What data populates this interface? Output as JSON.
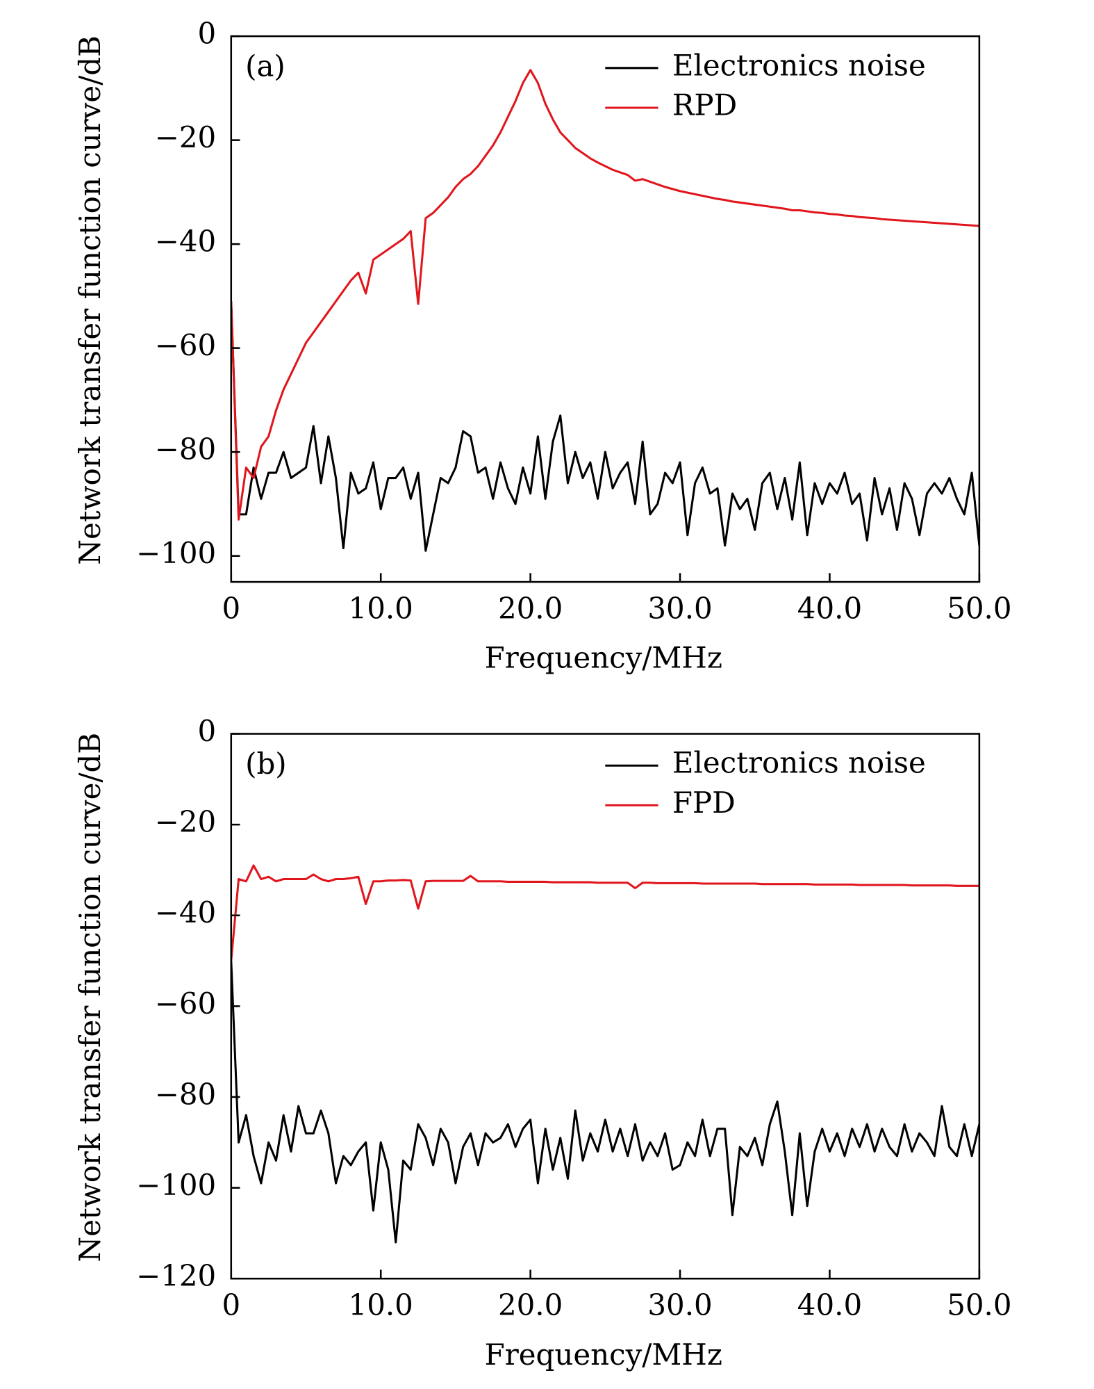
{
  "chart_data": [
    {
      "type": "line",
      "panel_label": "(a)",
      "xlabel": "Frequency/MHz",
      "ylabel": "Network transfer function curve/dB",
      "legend": "upper right",
      "xlim": [
        0,
        50
      ],
      "ylim": [
        -105,
        0
      ],
      "xticks": [
        0,
        {
          "value": 10,
          "label": "10.0"
        },
        {
          "value": 20,
          "label": "20.0"
        },
        {
          "value": 30,
          "label": "30.0"
        },
        {
          "value": 40,
          "label": "40.0"
        },
        {
          "value": 50,
          "label": "50.0"
        }
      ],
      "yticks": [
        0,
        {
          "value": -20,
          "label": "−20"
        },
        {
          "value": -40,
          "label": "−40"
        },
        {
          "value": -60,
          "label": "−60"
        },
        {
          "value": -80,
          "label": "−80"
        },
        {
          "value": -100,
          "label": "−100"
        }
      ],
      "x": [
        0,
        0.5,
        1,
        1.5,
        2,
        2.5,
        3,
        3.5,
        4,
        4.5,
        5,
        5.5,
        6,
        6.5,
        7,
        7.5,
        8,
        8.5,
        9,
        9.5,
        10,
        10.5,
        11,
        11.5,
        12,
        12.5,
        13,
        13.5,
        14,
        14.5,
        15,
        15.5,
        16,
        16.5,
        17,
        17.5,
        18,
        18.5,
        19,
        19.5,
        20,
        20.5,
        21,
        21.5,
        22,
        22.5,
        23,
        23.5,
        24,
        24.5,
        25,
        25.5,
        26,
        26.5,
        27,
        27.5,
        28,
        28.5,
        29,
        29.5,
        30,
        30.5,
        31,
        31.5,
        32,
        32.5,
        33,
        33.5,
        34,
        34.5,
        35,
        35.5,
        36,
        36.5,
        37,
        37.5,
        38,
        38.5,
        39,
        39.5,
        40,
        40.5,
        41,
        41.5,
        42,
        42.5,
        43,
        43.5,
        44,
        44.5,
        45,
        45.5,
        46,
        46.5,
        47,
        47.5,
        48,
        48.5,
        49,
        49.5,
        50
      ],
      "series": [
        {
          "name": "Electronics noise",
          "color": "#000000",
          "values": [
            -51,
            -92,
            -92,
            -83,
            -89,
            -84,
            -84,
            -80,
            -85,
            -84,
            -83,
            -75,
            -86,
            -77,
            -85,
            -98.5,
            -84,
            -88,
            -87,
            -82,
            -91,
            -85,
            -85,
            -83,
            -89,
            -84,
            -99,
            -92,
            -85,
            -86,
            -83,
            -76,
            -77,
            -84,
            -83,
            -89,
            -82,
            -87,
            -90,
            -83,
            -88,
            -77,
            -89,
            -78,
            -73,
            -86,
            -80,
            -85,
            -82,
            -89,
            -80,
            -87,
            -84,
            -82,
            -90,
            -78,
            -92,
            -90,
            -84,
            -86,
            -82,
            -96,
            -86,
            -83,
            -88,
            -87,
            -98,
            -88,
            -91,
            -89,
            -95,
            -86,
            -84,
            -91,
            -85,
            -93,
            -82,
            -96,
            -86,
            -90,
            -86,
            -88,
            -84,
            -90,
            -88,
            -97,
            -85,
            -92,
            -87,
            -95,
            -86,
            -89,
            -96,
            -88,
            -86,
            -88,
            -85,
            -89,
            -92,
            -84,
            -98
          ]
        },
        {
          "name": "RPD",
          "color": "#e0161c",
          "values": [
            -51,
            -93,
            -83,
            -85,
            -79,
            -77,
            -72,
            -68,
            -65,
            -62,
            -59,
            -57,
            -55,
            -53,
            -51,
            -49,
            -47,
            -45.5,
            -49.5,
            -43,
            -42,
            -41,
            -40,
            -39,
            -37.5,
            -51.5,
            -35,
            -34,
            -32.5,
            -31,
            -29,
            -27.5,
            -26.5,
            -25,
            -23,
            -21,
            -18.5,
            -15.5,
            -12.5,
            -9,
            -6.5,
            -9,
            -13,
            -16,
            -18.5,
            -20,
            -21.5,
            -22.5,
            -23.5,
            -24.3,
            -25,
            -25.7,
            -26.2,
            -26.7,
            -27.8,
            -27.5,
            -28,
            -28.5,
            -29,
            -29.4,
            -29.8,
            -30.1,
            -30.4,
            -30.7,
            -31,
            -31.3,
            -31.5,
            -31.8,
            -32,
            -32.2,
            -32.4,
            -32.6,
            -32.8,
            -33,
            -33.2,
            -33.5,
            -33.5,
            -33.7,
            -33.9,
            -34,
            -34.2,
            -34.3,
            -34.5,
            -34.6,
            -34.8,
            -34.9,
            -35,
            -35.2,
            -35.3,
            -35.4,
            -35.5,
            -35.6,
            -35.7,
            -35.8,
            -35.9,
            -36,
            -36.1,
            -36.2,
            -36.3,
            -36.4,
            -36.5
          ]
        }
      ]
    },
    {
      "type": "line",
      "panel_label": "(b)",
      "xlabel": "Frequency/MHz",
      "ylabel": "Network transfer function curve/dB",
      "legend": "upper right",
      "xlim": [
        0,
        50
      ],
      "ylim": [
        -120,
        0
      ],
      "xticks": [
        0,
        {
          "value": 10,
          "label": "10.0"
        },
        {
          "value": 20,
          "label": "20.0"
        },
        {
          "value": 30,
          "label": "30.0"
        },
        {
          "value": 40,
          "label": "40.0"
        },
        {
          "value": 50,
          "label": "50.0"
        }
      ],
      "yticks": [
        0,
        {
          "value": -20,
          "label": "−20"
        },
        {
          "value": -40,
          "label": "−40"
        },
        {
          "value": -60,
          "label": "−60"
        },
        {
          "value": -80,
          "label": "−80"
        },
        {
          "value": -100,
          "label": "−100"
        },
        {
          "value": -120,
          "label": "−120"
        }
      ],
      "x": [
        0,
        0.5,
        1,
        1.5,
        2,
        2.5,
        3,
        3.5,
        4,
        4.5,
        5,
        5.5,
        6,
        6.5,
        7,
        7.5,
        8,
        8.5,
        9,
        9.5,
        10,
        10.5,
        11,
        11.5,
        12,
        12.5,
        13,
        13.5,
        14,
        14.5,
        15,
        15.5,
        16,
        16.5,
        17,
        17.5,
        18,
        18.5,
        19,
        19.5,
        20,
        20.5,
        21,
        21.5,
        22,
        22.5,
        23,
        23.5,
        24,
        24.5,
        25,
        25.5,
        26,
        26.5,
        27,
        27.5,
        28,
        28.5,
        29,
        29.5,
        30,
        30.5,
        31,
        31.5,
        32,
        32.5,
        33,
        33.5,
        34,
        34.5,
        35,
        35.5,
        36,
        36.5,
        37,
        37.5,
        38,
        38.5,
        39,
        39.5,
        40,
        40.5,
        41,
        41.5,
        42,
        42.5,
        43,
        43.5,
        44,
        44.5,
        45,
        45.5,
        46,
        46.5,
        47,
        47.5,
        48,
        48.5,
        49,
        49.5,
        50
      ],
      "series": [
        {
          "name": "Electronics noise",
          "color": "#000000",
          "values": [
            -50,
            -90,
            -84,
            -93,
            -99,
            -90,
            -94,
            -84,
            -92,
            -82,
            -88,
            -88,
            -83,
            -88,
            -99,
            -93,
            -95,
            -92,
            -90,
            -105,
            -90,
            -96,
            -112,
            -94,
            -96,
            -86,
            -89,
            -95,
            -87,
            -90,
            -99,
            -91,
            -88,
            -95,
            -88,
            -90,
            -89,
            -86,
            -91,
            -87,
            -85,
            -99,
            -87,
            -96,
            -89,
            -98,
            -83,
            -94,
            -88,
            -92,
            -85,
            -92,
            -87,
            -93,
            -86,
            -94,
            -90,
            -93,
            -88,
            -96,
            -95,
            -90,
            -93,
            -85,
            -93,
            -87,
            -87,
            -106,
            -91,
            -93,
            -89,
            -95,
            -86,
            -81,
            -92,
            -106,
            -88,
            -104,
            -92,
            -87,
            -92,
            -88,
            -93,
            -87,
            -91,
            -86,
            -92,
            -87,
            -91,
            -93,
            -86,
            -92,
            -88,
            -90,
            -93,
            -82,
            -91,
            -93,
            -86,
            -93,
            -86
          ]
        },
        {
          "name": "FPD",
          "color": "#e0161c",
          "values": [
            -50,
            -32,
            -32.5,
            -29,
            -32,
            -31.5,
            -32.5,
            -32,
            -32,
            -32,
            -32,
            -31,
            -32,
            -32.5,
            -32,
            -32,
            -31.8,
            -31.5,
            -37.5,
            -32.5,
            -32.5,
            -32.3,
            -32.3,
            -32.2,
            -32.3,
            -38.5,
            -32.5,
            -32.4,
            -32.4,
            -32.4,
            -32.4,
            -32.4,
            -31.3,
            -32.5,
            -32.5,
            -32.5,
            -32.5,
            -32.6,
            -32.6,
            -32.6,
            -32.6,
            -32.6,
            -32.6,
            -32.7,
            -32.7,
            -32.7,
            -32.7,
            -32.7,
            -32.7,
            -32.8,
            -32.8,
            -32.8,
            -32.8,
            -32.8,
            -34,
            -32.8,
            -32.8,
            -32.9,
            -32.9,
            -32.9,
            -32.9,
            -32.9,
            -32.9,
            -33,
            -33,
            -33,
            -33,
            -33,
            -33,
            -33,
            -33,
            -33.1,
            -33.1,
            -33.1,
            -33.1,
            -33.1,
            -33.1,
            -33.1,
            -33.2,
            -33.2,
            -33.2,
            -33.2,
            -33.2,
            -33.2,
            -33.3,
            -33.3,
            -33.3,
            -33.3,
            -33.3,
            -33.3,
            -33.3,
            -33.4,
            -33.4,
            -33.4,
            -33.4,
            -33.4,
            -33.4,
            -33.5,
            -33.5,
            -33.5,
            -33.5
          ]
        }
      ]
    }
  ]
}
